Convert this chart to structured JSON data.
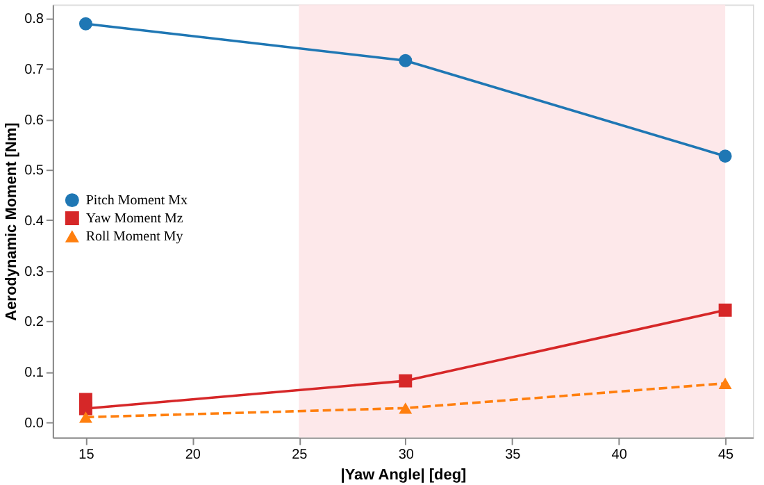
{
  "chart_data": {
    "type": "line",
    "xlabel": "|Yaw Angle| [deg]",
    "ylabel": "Aerodynamic Moment [Nm]",
    "xlim": [
      13.45,
      46.3
    ],
    "xticks": [
      15,
      20,
      25,
      30,
      35,
      40,
      45
    ],
    "ylim": [
      -0.03,
      0.827
    ],
    "yticks": [
      {
        "value": 0,
        "label": "0.0"
      },
      {
        "value": 0.1,
        "label": "0.1"
      },
      {
        "value": 0.2,
        "label": "0.2"
      },
      {
        "value": 0.3,
        "label": "0.3"
      },
      {
        "value": 0.4,
        "label": "0.4"
      },
      {
        "value": 0.5,
        "label": "0.5"
      },
      {
        "value": 0.6,
        "label": "0.6"
      },
      {
        "value": 0.7,
        "label": "0.7"
      },
      {
        "value": 0.8,
        "label": "0.8"
      }
    ],
    "bands": [
      {
        "axis": "x",
        "from": 25,
        "to": 45,
        "color": "#fde6e8"
      }
    ],
    "legend": "left",
    "grid": false,
    "series": [
      {
        "name": "Pitch Moment Mx",
        "color": "#1f77b4",
        "x": [
          15,
          30,
          45
        ],
        "values": [
          0.789,
          0.716,
          0.527
        ],
        "marker": "circle",
        "line_style": "solid"
      },
      {
        "name": "Yaw Moment Mz",
        "color": "#d62728",
        "x": [
          15,
          15,
          30,
          45
        ],
        "values": [
          0.045,
          0.027,
          0.082,
          0.222
        ],
        "marker": "square",
        "line_style": "solid"
      },
      {
        "name": "Roll Moment My",
        "color": "#ff7f0e",
        "x": [
          15,
          30,
          45
        ],
        "values": [
          0.01,
          0.028,
          0.077
        ],
        "marker": "triangle",
        "line_style": "dashed"
      }
    ]
  }
}
